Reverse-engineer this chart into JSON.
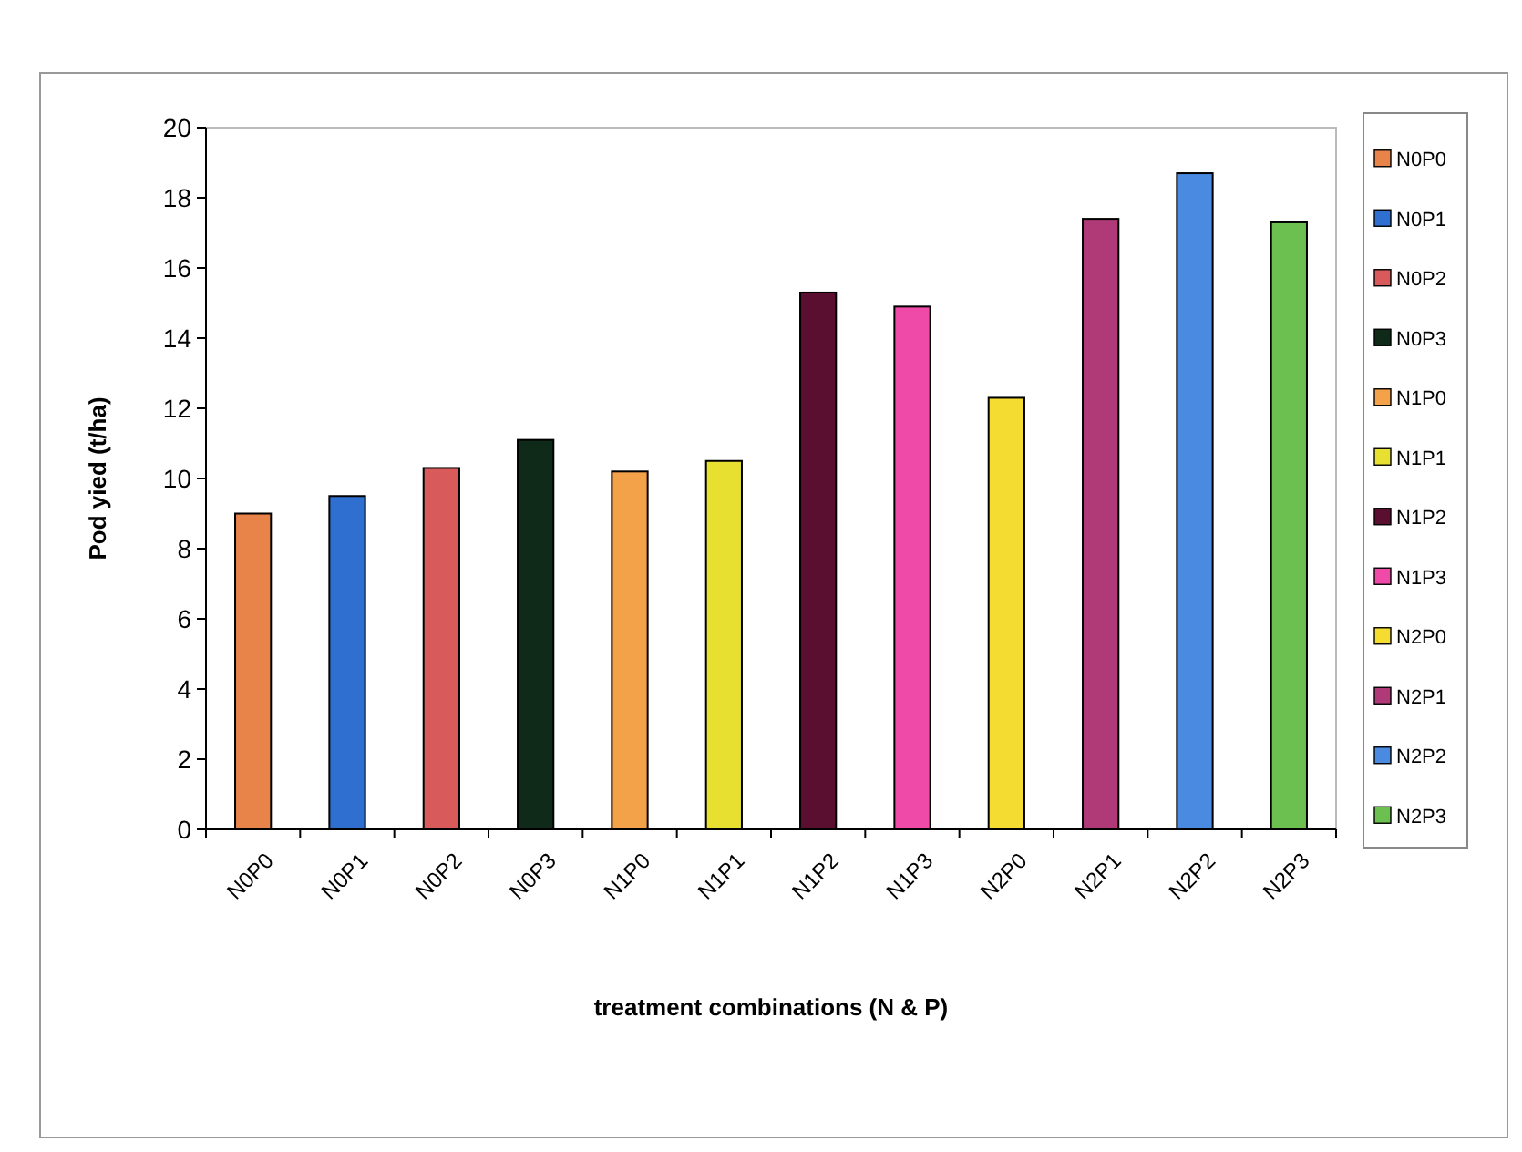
{
  "chart_data": {
    "type": "bar",
    "xlabel": "treatment combinations (N & P)",
    "ylabel": "Pod yied (t/ha)",
    "categories": [
      "N0P0",
      "N0P1",
      "N0P2",
      "N0P3",
      "N1P0",
      "N1P1",
      "N1P2",
      "N1P3",
      "N2P0",
      "N2P1",
      "N2P2",
      "N2P3"
    ],
    "series": [
      {
        "name": "N0P0",
        "color": "#e8834a",
        "values": [
          9.0,
          null,
          null,
          null,
          null,
          null,
          null,
          null,
          null,
          null,
          null,
          null
        ]
      },
      {
        "name": "N0P1",
        "color": "#2f6fd0",
        "values": [
          null,
          9.5,
          null,
          null,
          null,
          null,
          null,
          null,
          null,
          null,
          null,
          null
        ]
      },
      {
        "name": "N0P2",
        "color": "#d85a5a",
        "values": [
          null,
          null,
          10.3,
          null,
          null,
          null,
          null,
          null,
          null,
          null,
          null,
          null
        ]
      },
      {
        "name": "N0P3",
        "color": "#0f2a18",
        "values": [
          null,
          null,
          null,
          11.1,
          null,
          null,
          null,
          null,
          null,
          null,
          null,
          null
        ]
      },
      {
        "name": "N1P0",
        "color": "#f4a24a",
        "values": [
          null,
          null,
          null,
          null,
          10.2,
          null,
          null,
          null,
          null,
          null,
          null,
          null
        ]
      },
      {
        "name": "N1P1",
        "color": "#e8e030",
        "values": [
          null,
          null,
          null,
          null,
          null,
          10.5,
          null,
          null,
          null,
          null,
          null,
          null
        ]
      },
      {
        "name": "N1P2",
        "color": "#5a0f30",
        "values": [
          null,
          null,
          null,
          null,
          null,
          null,
          15.3,
          null,
          null,
          null,
          null,
          null
        ]
      },
      {
        "name": "N1P3",
        "color": "#f04aa8",
        "values": [
          null,
          null,
          null,
          null,
          null,
          null,
          null,
          14.9,
          null,
          null,
          null,
          null
        ]
      },
      {
        "name": "N2P0",
        "color": "#f4dc30",
        "values": [
          null,
          null,
          null,
          null,
          null,
          null,
          null,
          null,
          12.3,
          null,
          null,
          null
        ]
      },
      {
        "name": "N2P1",
        "color": "#b03a78",
        "values": [
          null,
          null,
          null,
          null,
          null,
          null,
          null,
          null,
          null,
          17.4,
          null,
          null
        ]
      },
      {
        "name": "N2P2",
        "color": "#4a8ae0",
        "values": [
          null,
          null,
          null,
          null,
          null,
          null,
          null,
          null,
          null,
          null,
          18.7,
          null
        ]
      },
      {
        "name": "N2P3",
        "color": "#6cc050",
        "values": [
          null,
          null,
          null,
          null,
          null,
          null,
          null,
          null,
          null,
          null,
          null,
          17.3
        ]
      }
    ],
    "ylim": [
      0,
      20
    ],
    "yticks": [
      0,
      2,
      4,
      6,
      8,
      10,
      12,
      14,
      16,
      18,
      20
    ],
    "legend": "right"
  }
}
